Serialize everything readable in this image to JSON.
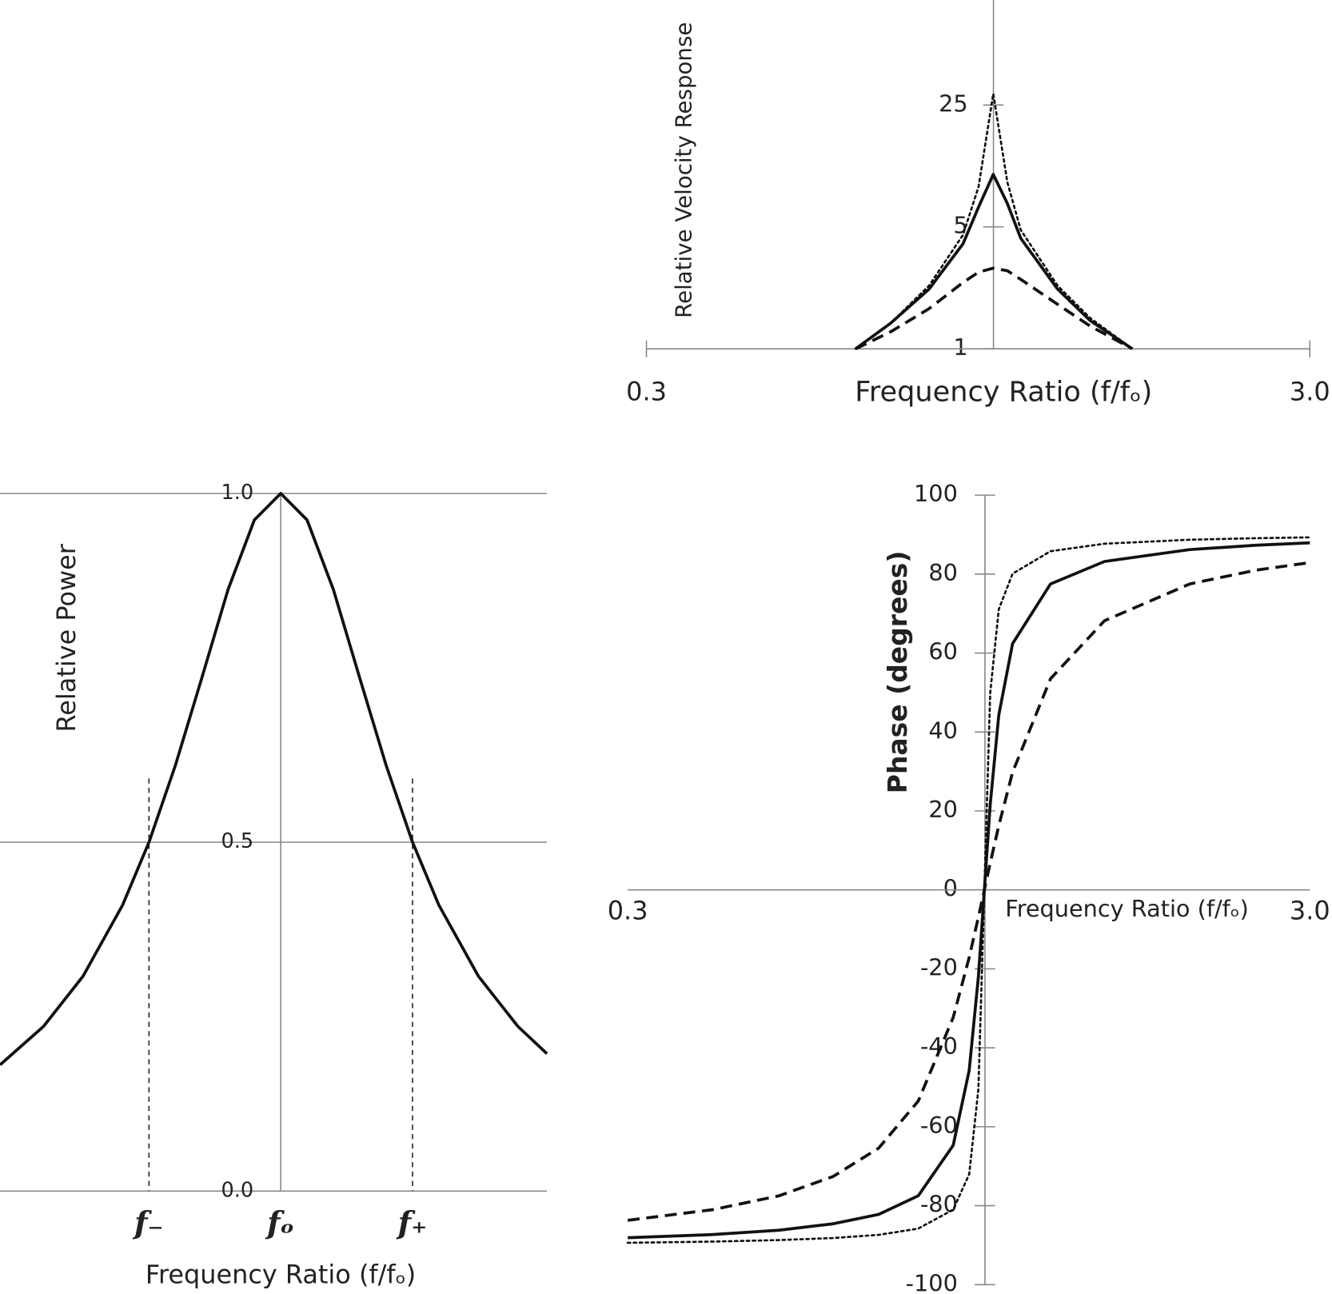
{
  "chart_data": [
    {
      "type": "line",
      "y_label": "Relative  Velocity Response",
      "x_label": "Frequency Ratio (f/fₒ)",
      "xlog": true,
      "ylog": true,
      "xlim": [
        0.3,
        3
      ],
      "ylim": [
        1,
        100
      ],
      "xticks": [
        0.3,
        {
          "value": 3,
          "label": "3.0"
        }
      ],
      "yticks": [
        1,
        5,
        25
      ],
      "grid": false,
      "x": [
        0.62,
        0.7,
        0.8,
        0.9,
        0.95,
        1.0,
        1.05,
        1.1,
        1.25,
        1.4,
        1.62
      ],
      "series": [
        {
          "color": "#111111",
          "style": "dotted",
          "values": [
            1.0,
            1.4,
            2.3,
            4.5,
            8.5,
            29,
            9,
            4.8,
            2.3,
            1.5,
            1.0
          ]
        },
        {
          "color": "#111111",
          "style": "solid",
          "values": [
            1.0,
            1.4,
            2.2,
            4.0,
            6.5,
            10,
            6.8,
            4.3,
            2.2,
            1.45,
            1.0
          ]
        },
        {
          "color": "#111111",
          "style": "dashed",
          "values": [
            1.0,
            1.25,
            1.7,
            2.4,
            2.75,
            2.9,
            2.8,
            2.5,
            1.8,
            1.35,
            1.0
          ]
        }
      ]
    },
    {
      "type": "line",
      "y_label": "Relative Power",
      "x_label": "Frequency Ratio (f/fₒ)",
      "xlog": false,
      "ylog": false,
      "xlim": [
        0.787,
        1.202
      ],
      "ylim": [
        0,
        1
      ],
      "xticks": [
        {
          "value": 0.9,
          "label": "f₋"
        },
        {
          "value": 1,
          "label": "fₒ"
        },
        {
          "value": 1.1,
          "label": "f₊"
        }
      ],
      "yticks": [
        {
          "value": 0,
          "label": "0.0"
        },
        {
          "value": 0.5,
          "label": "0.5"
        },
        {
          "value": 1,
          "label": "1.0"
        }
      ],
      "grid": true,
      "x": [
        0.787,
        0.82,
        0.85,
        0.88,
        0.9,
        0.92,
        0.94,
        0.96,
        0.98,
        1.0,
        1.02,
        1.04,
        1.06,
        1.08,
        1.1,
        1.12,
        1.15,
        1.18,
        1.202
      ],
      "series": [
        {
          "color": "#111111",
          "style": "solid",
          "values": [
            0.181,
            0.236,
            0.308,
            0.41,
            0.5,
            0.61,
            0.735,
            0.862,
            0.962,
            1,
            0.962,
            0.862,
            0.735,
            0.61,
            0.5,
            0.41,
            0.308,
            0.236,
            0.197
          ]
        }
      ]
    },
    {
      "type": "line",
      "y_label": "Phase (degrees)",
      "x_label": "Frequency Ratio (f/fₒ)",
      "xlog": true,
      "ylog": false,
      "xlim": [
        0.3,
        3
      ],
      "ylim": [
        -100,
        100
      ],
      "xticks": [
        0.3,
        {
          "value": 3,
          "label": "3.0"
        }
      ],
      "yticks": [
        -100,
        -80,
        -60,
        -40,
        -20,
        0,
        20,
        40,
        60,
        80,
        100
      ],
      "grid": false,
      "x": [
        0.3,
        0.4,
        0.5,
        0.6,
        0.7,
        0.8,
        0.9,
        0.95,
        0.98,
        1.0,
        1.02,
        1.05,
        1.1,
        1.25,
        1.5,
        2,
        2.5,
        3
      ],
      "series": [
        {
          "color": "#111111",
          "style": "dotted",
          "values": [
            -89.4,
            -89.1,
            -88.7,
            -88.2,
            -87.4,
            -85.8,
            -81.0,
            -72.0,
            -50.5,
            0,
            49.9,
            71.1,
            80.1,
            85.8,
            87.7,
            88.7,
            89.1,
            89.3
          ]
        },
        {
          "color": "#111111",
          "style": "solid",
          "values": [
            -88.1,
            -87.3,
            -86.2,
            -84.6,
            -82.2,
            -77.5,
            -64.7,
            -45.7,
            -22.0,
            0,
            21.6,
            44.3,
            62.4,
            77.5,
            83.2,
            86.2,
            87.3,
            87.9
          ]
        },
        {
          "color": "#111111",
          "style": "dashed",
          "values": [
            -83.7,
            -81.0,
            -77.5,
            -72.6,
            -65.4,
            -53.5,
            -32.3,
            -17.1,
            -6.9,
            0,
            6.8,
            16.3,
            29.8,
            53.5,
            68.2,
            77.5,
            81.0,
            82.9
          ]
        }
      ]
    }
  ]
}
